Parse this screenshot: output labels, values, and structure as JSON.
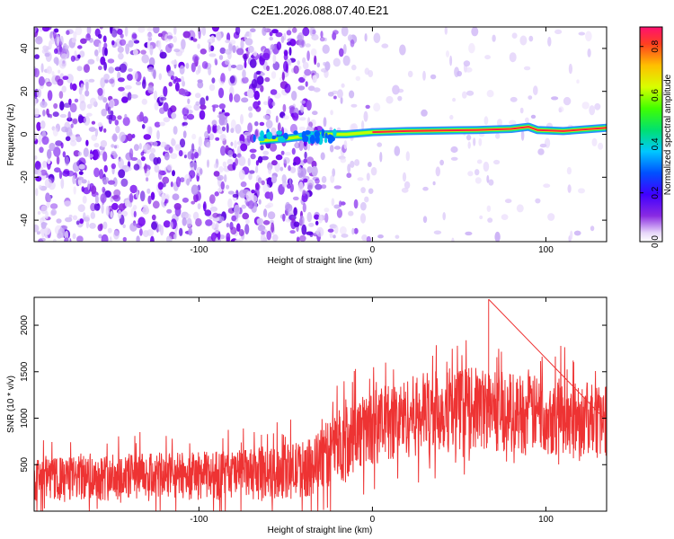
{
  "title": "C2E1.2026.088.07.40.E21",
  "chart_data": [
    {
      "type": "heatmap",
      "xlabel": "Height of straight line (km)",
      "ylabel": "Frequency (Hz)",
      "xlim": [
        -195,
        135
      ],
      "ylim": [
        -50,
        50
      ],
      "xticks": [
        -100,
        0,
        100
      ],
      "yticks": [
        -40,
        -20,
        0,
        20,
        40
      ],
      "colorbar": {
        "label": "Normalized spectral amplitude",
        "range": [
          0.0,
          0.88
        ],
        "ticks": [
          0.0,
          0.2,
          0.4,
          0.6,
          0.8
        ],
        "colormap": [
          "#e8d8fa",
          "#8a2be2",
          "#4000ff",
          "#0050ff",
          "#00c8ff",
          "#00e070",
          "#40ff00",
          "#d8ff00",
          "#ffc000",
          "#ff4020",
          "#ff1070"
        ]
      },
      "noise_region": {
        "dense_until_km": -30,
        "sparse_until_km": 0
      },
      "signal_ridge": [
        {
          "x": -65,
          "y": -3
        },
        {
          "x": -50,
          "y": -2
        },
        {
          "x": -30,
          "y": 0
        },
        {
          "x": -15,
          "y": 0
        },
        {
          "x": 0,
          "y": 1
        },
        {
          "x": 20,
          "y": 1.5
        },
        {
          "x": 60,
          "y": 2
        },
        {
          "x": 80,
          "y": 2.5
        },
        {
          "x": 90,
          "y": 3.5
        },
        {
          "x": 95,
          "y": 2
        },
        {
          "x": 110,
          "y": 1.5
        },
        {
          "x": 135,
          "y": 3
        }
      ]
    },
    {
      "type": "line",
      "xlabel": "Height of straight line (km)",
      "ylabel": "SNR (10 * v/v)",
      "xlim": [
        -195,
        135
      ],
      "ylim": [
        0,
        2300
      ],
      "xticks": [
        -100,
        0,
        100
      ],
      "yticks": [
        500,
        1000,
        1500,
        2000
      ],
      "color": "#ee3333",
      "envelope": [
        {
          "x": -195,
          "lower": 100,
          "upper": 560
        },
        {
          "x": -150,
          "lower": 110,
          "upper": 620
        },
        {
          "x": -100,
          "lower": 120,
          "upper": 640
        },
        {
          "x": -60,
          "lower": 110,
          "upper": 680
        },
        {
          "x": -35,
          "lower": 150,
          "upper": 780
        },
        {
          "x": -20,
          "lower": 300,
          "upper": 1100
        },
        {
          "x": 0,
          "lower": 500,
          "upper": 1300
        },
        {
          "x": 30,
          "lower": 600,
          "upper": 1500
        },
        {
          "x": 60,
          "lower": 650,
          "upper": 1550
        },
        {
          "x": 100,
          "lower": 600,
          "upper": 1450
        },
        {
          "x": 135,
          "lower": 580,
          "upper": 1350
        }
      ],
      "max_peak": {
        "x": 67,
        "y": 2280
      }
    }
  ]
}
